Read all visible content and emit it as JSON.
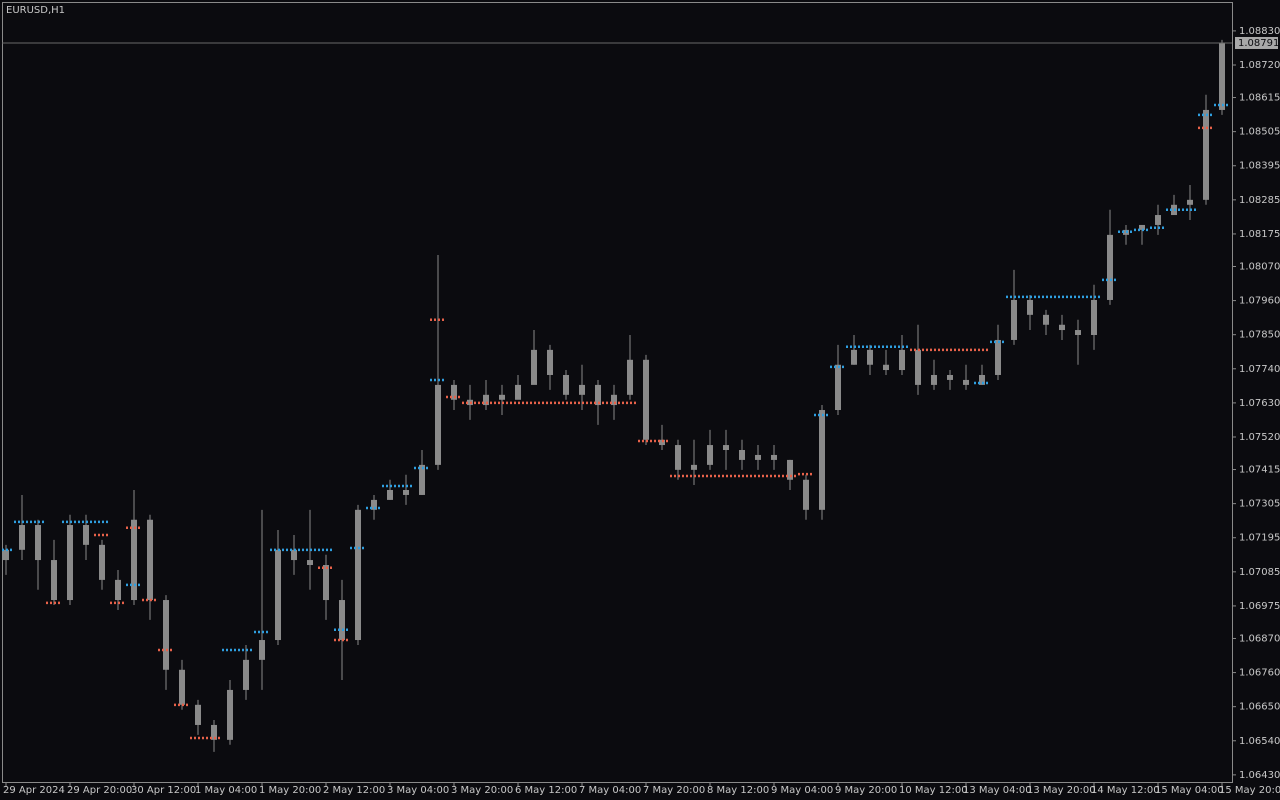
{
  "chart_data": {
    "type": "candlestick",
    "title": "EURUSD,H1",
    "categories": [
      "29 Apr 2024",
      null,
      null,
      null,
      "29 Apr 20:00",
      null,
      null,
      null,
      "30 Apr 12:00",
      null,
      null,
      null,
      "1 May 04:00",
      null,
      null,
      null,
      "1 May 20:00",
      null,
      null,
      null,
      "2 May 12:00",
      null,
      null,
      null,
      "3 May 04:00",
      null,
      null,
      null,
      "3 May 20:00",
      null,
      null,
      null,
      "6 May 12:00",
      null,
      null,
      null,
      "7 May 04:00",
      null,
      null,
      null,
      "7 May 20:00",
      null,
      null,
      null,
      "8 May 12:00",
      null,
      null,
      null,
      "9 May 04:00",
      null,
      null,
      null,
      "9 May 20:00",
      null,
      null,
      null,
      "10 May 12:00",
      null,
      null,
      null,
      "13 May 04:00",
      null,
      null,
      null,
      "13 May 20:00",
      null,
      null,
      null,
      "14 May 12:00",
      null,
      null,
      null,
      "15 May 04:00",
      null,
      null,
      null,
      "15 May 20:00"
    ],
    "open": [
      1.07123,
      1.07156,
      1.07236,
      1.07123,
      1.06994,
      1.07236,
      1.07172,
      1.07059,
      1.06994,
      1.07253,
      1.06994,
      1.06769,
      1.06656,
      1.06591,
      1.06543,
      1.06704,
      1.06801,
      1.06865,
      1.07156,
      1.07123,
      1.07107,
      1.06994,
      1.06865,
      1.07285,
      1.07317,
      1.07349,
      1.07333,
      1.0743,
      1.07688,
      1.0764,
      1.07623,
      1.07656,
      1.0764,
      1.07688,
      1.07801,
      1.0772,
      1.07656,
      1.07688,
      1.07623,
      1.07656,
      1.07769,
      1.07511,
      1.07494,
      1.07414,
      1.0743,
      1.07494,
      1.07478,
      1.07446,
      1.07462,
      1.07446,
      1.07382,
      1.07285,
      1.07607,
      1.07753,
      1.07801,
      1.07753,
      1.07736,
      1.07801,
      1.07688,
      1.0772,
      1.07704,
      1.07688,
      1.0772,
      1.07833,
      1.07962,
      1.07914,
      1.07882,
      1.07865,
      1.07849,
      1.07962,
      1.08172,
      1.08188,
      1.08204,
      1.08236,
      1.08269,
      1.08285,
      1.08575
    ],
    "high": [
      1.07172,
      1.07333,
      1.07253,
      1.07188,
      1.07269,
      1.07269,
      1.07188,
      1.07091,
      1.07349,
      1.07269,
      1.0701,
      1.06801,
      1.06672,
      1.06607,
      1.06736,
      1.06849,
      1.07285,
      1.0722,
      1.07204,
      1.07285,
      1.0714,
      1.07059,
      1.07301,
      1.07333,
      1.07382,
      1.07398,
      1.07478,
      1.08107,
      1.07704,
      1.07688,
      1.07704,
      1.07688,
      1.0772,
      1.07865,
      1.07817,
      1.07736,
      1.07753,
      1.07704,
      1.07688,
      1.07849,
      1.07785,
      1.07559,
      1.07511,
      1.07511,
      1.07543,
      1.07543,
      1.07511,
      1.07494,
      1.07494,
      1.07446,
      1.07398,
      1.07623,
      1.07817,
      1.07849,
      1.07817,
      1.07801,
      1.07849,
      1.07882,
      1.07769,
      1.07736,
      1.07753,
      1.07753,
      1.07882,
      1.08059,
      1.07978,
      1.0793,
      1.07914,
      1.07898,
      1.08011,
      1.08253,
      1.08204,
      1.08204,
      1.08269,
      1.08301,
      1.08333,
      1.08624,
      1.08801
    ],
    "low": [
      1.07075,
      1.07123,
      1.07027,
      1.06978,
      1.06978,
      1.07123,
      1.07027,
      1.06962,
      1.06978,
      1.0693,
      1.06704,
      1.0664,
      1.06559,
      1.06504,
      1.06527,
      1.06672,
      1.06704,
      1.06849,
      1.07075,
      1.07027,
      1.0693,
      1.06736,
      1.06849,
      1.07253,
      1.07317,
      1.07301,
      1.07333,
      1.07414,
      1.07607,
      1.07575,
      1.07607,
      1.07591,
      1.07656,
      1.07704,
      1.07672,
      1.0764,
      1.07607,
      1.07559,
      1.07575,
      1.0764,
      1.07494,
      1.07478,
      1.07382,
      1.07365,
      1.07414,
      1.07414,
      1.07414,
      1.07414,
      1.07414,
      1.07349,
      1.07253,
      1.07253,
      1.07591,
      1.07753,
      1.0772,
      1.0772,
      1.0772,
      1.07656,
      1.07672,
      1.07672,
      1.07672,
      1.07688,
      1.07704,
      1.07817,
      1.07865,
      1.07849,
      1.07833,
      1.07753,
      1.07801,
      1.07946,
      1.0814,
      1.0814,
      1.08172,
      1.08236,
      1.0822,
      1.08269,
      1.08559
    ],
    "close": [
      1.07156,
      1.07236,
      1.07123,
      1.06994,
      1.07236,
      1.07172,
      1.07059,
      1.06994,
      1.07253,
      1.06994,
      1.06769,
      1.06656,
      1.06591,
      1.06543,
      1.06704,
      1.06801,
      1.06865,
      1.07156,
      1.07123,
      1.07107,
      1.06994,
      1.06865,
      1.07285,
      1.07317,
      1.07349,
      1.07333,
      1.0743,
      1.07688,
      1.0764,
      1.07623,
      1.07656,
      1.0764,
      1.07688,
      1.07801,
      1.0772,
      1.07656,
      1.07688,
      1.07623,
      1.07656,
      1.07769,
      1.07511,
      1.07494,
      1.07414,
      1.0743,
      1.07494,
      1.07478,
      1.07446,
      1.07462,
      1.07446,
      1.07382,
      1.07285,
      1.07607,
      1.07753,
      1.07801,
      1.07753,
      1.07736,
      1.07801,
      1.07688,
      1.0772,
      1.07704,
      1.07688,
      1.0772,
      1.07833,
      1.07962,
      1.07914,
      1.07882,
      1.07865,
      1.07849,
      1.07962,
      1.08172,
      1.08188,
      1.08204,
      1.08236,
      1.08269,
      1.08285,
      1.08575,
      1.08791
    ],
    "color": "#8a8a8a",
    "levels": [
      {
        "color": "#2f9fe0",
        "values": [
          1.07156,
          1.07246,
          1.07246,
          null,
          1.07246,
          1.07246,
          1.07246,
          null,
          1.07043,
          null,
          null,
          null,
          null,
          null,
          1.06833,
          1.06833,
          1.06891,
          1.07156,
          1.07156,
          1.07156,
          1.07156,
          1.06898,
          1.07162,
          1.07291,
          1.07362,
          1.07362,
          1.0742,
          1.07704,
          null,
          null,
          null,
          null,
          null,
          null,
          null,
          null,
          null,
          null,
          null,
          null,
          null,
          null,
          null,
          null,
          null,
          null,
          null,
          null,
          null,
          null,
          null,
          1.07591,
          1.07746,
          1.07811,
          1.07811,
          1.07811,
          1.07811,
          null,
          null,
          null,
          null,
          1.07694,
          1.07827,
          1.07972,
          1.07972,
          1.07972,
          1.07972,
          1.07972,
          1.07972,
          1.08027,
          1.08182,
          1.08188,
          1.08195,
          1.08253,
          1.08253,
          1.08559,
          1.08591
        ]
      },
      {
        "color": "#e8624a",
        "values": [
          null,
          null,
          null,
          1.06985,
          null,
          null,
          1.07204,
          1.06985,
          1.07227,
          1.06994,
          1.06833,
          1.06656,
          1.06549,
          1.06549,
          null,
          null,
          null,
          null,
          null,
          null,
          1.07098,
          1.06865,
          null,
          null,
          null,
          null,
          null,
          1.07898,
          1.07649,
          1.0763,
          1.0763,
          1.0763,
          1.0763,
          1.0763,
          1.0763,
          1.0763,
          1.0763,
          1.0763,
          1.0763,
          1.0763,
          1.07507,
          1.07507,
          1.07394,
          1.07394,
          1.07394,
          1.07394,
          1.07394,
          1.07394,
          1.07394,
          1.07394,
          1.074,
          null,
          null,
          null,
          null,
          null,
          null,
          1.07801,
          1.07801,
          1.07801,
          1.07801,
          1.07801,
          null,
          null,
          null,
          null,
          null,
          null,
          null,
          null,
          null,
          null,
          null,
          null,
          null,
          1.08517,
          null
        ]
      }
    ],
    "ylim": [
      1.06407,
      1.0892
    ],
    "yticks": [
      {
        "value": 1.0883,
        "label": "1.08830"
      },
      {
        "value": 1.0872,
        "label": "1.08720"
      },
      {
        "value": 1.08615,
        "label": "1.08615"
      },
      {
        "value": 1.08505,
        "label": "1.08505"
      },
      {
        "value": 1.08395,
        "label": "1.08395"
      },
      {
        "value": 1.08285,
        "label": "1.08285"
      },
      {
        "value": 1.08175,
        "label": "1.08175"
      },
      {
        "value": 1.0807,
        "label": "1.08070"
      },
      {
        "value": 1.0796,
        "label": "1.07960"
      },
      {
        "value": 1.0785,
        "label": "1.07850"
      },
      {
        "value": 1.0774,
        "label": "1.07740"
      },
      {
        "value": 1.0763,
        "label": "1.07630"
      },
      {
        "value": 1.0752,
        "label": "1.07520"
      },
      {
        "value": 1.07415,
        "label": "1.07415"
      },
      {
        "value": 1.07305,
        "label": "1.07305"
      },
      {
        "value": 1.07195,
        "label": "1.07195"
      },
      {
        "value": 1.07085,
        "label": "1.07085"
      },
      {
        "value": 1.06975,
        "label": "1.06975"
      },
      {
        "value": 1.0687,
        "label": "1.06870"
      },
      {
        "value": 1.0676,
        "label": "1.06760"
      },
      {
        "value": 1.0665,
        "label": "1.06650"
      },
      {
        "value": 1.0654,
        "label": "1.06540"
      },
      {
        "value": 1.0643,
        "label": "1.06430"
      }
    ],
    "last_price": 1.08791
  }
}
